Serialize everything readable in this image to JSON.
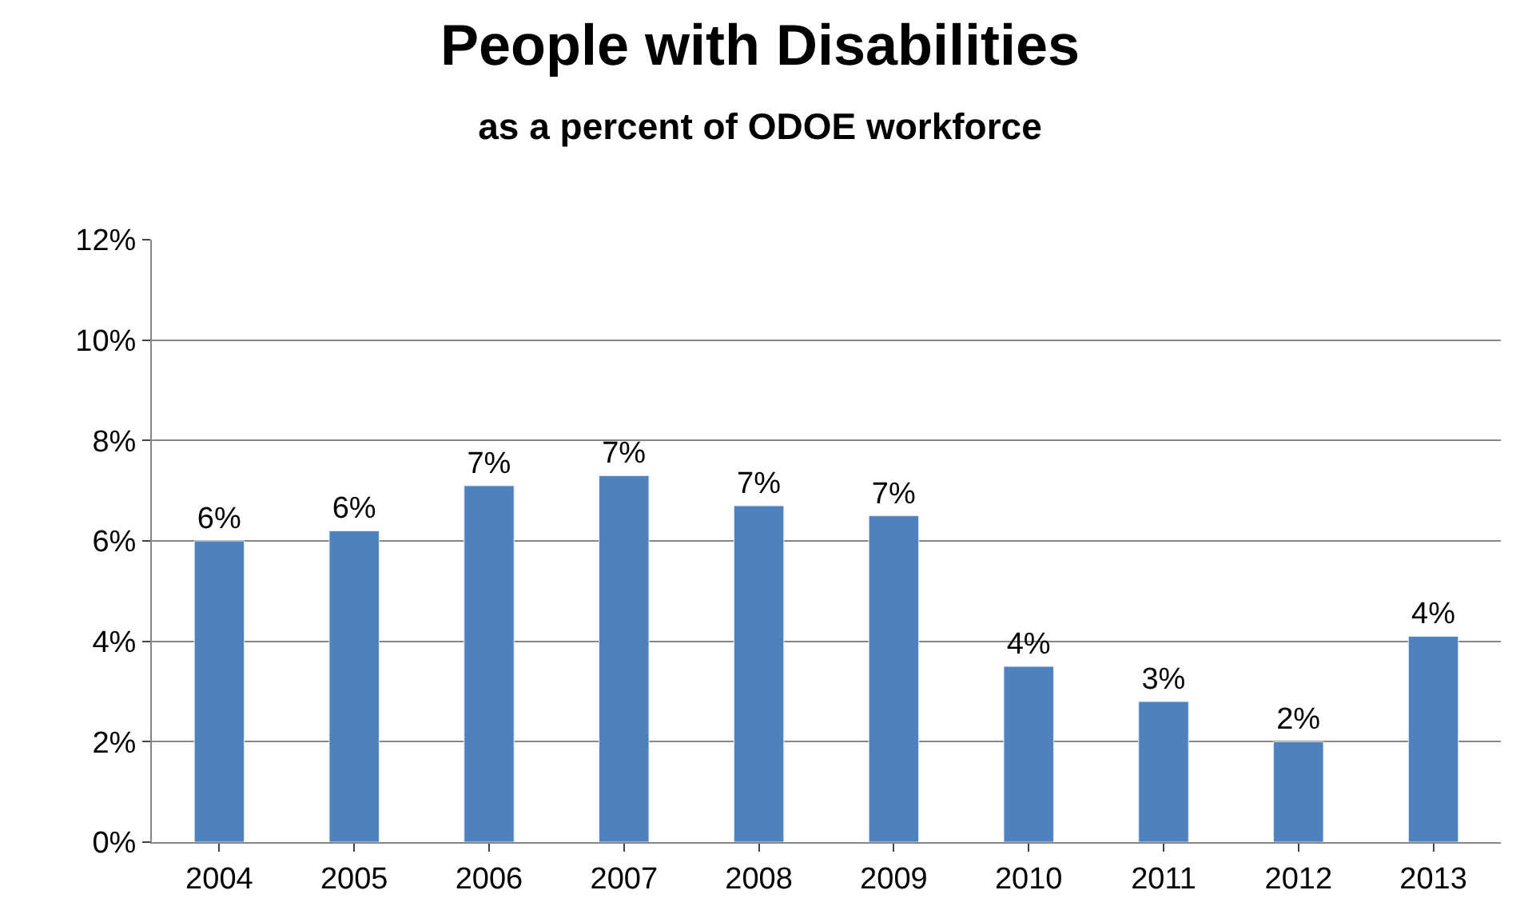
{
  "chart_data": {
    "type": "bar",
    "title": "People with Disabilities",
    "subtitle": "as a percent of ODOE workforce",
    "categories": [
      "2004",
      "2005",
      "2006",
      "2007",
      "2008",
      "2009",
      "2010",
      "2011",
      "2012",
      "2013"
    ],
    "values": [
      6.0,
      6.2,
      7.1,
      7.3,
      6.7,
      6.5,
      3.5,
      2.8,
      2.0,
      4.1
    ],
    "value_labels": [
      "6%",
      "6%",
      "7%",
      "7%",
      "7%",
      "7%",
      "4%",
      "3%",
      "2%",
      "4%"
    ],
    "color": "#4f81bd",
    "ylim": [
      0,
      12
    ],
    "yticks": [
      {
        "value": 0,
        "label": "0%"
      },
      {
        "value": 2,
        "label": "2%"
      },
      {
        "value": 4,
        "label": "4%"
      },
      {
        "value": 6,
        "label": "6%"
      },
      {
        "value": 8,
        "label": "8%"
      },
      {
        "value": 10,
        "label": "10%"
      },
      {
        "value": 12,
        "label": "12%"
      }
    ],
    "grid": "y",
    "legend": false
  }
}
